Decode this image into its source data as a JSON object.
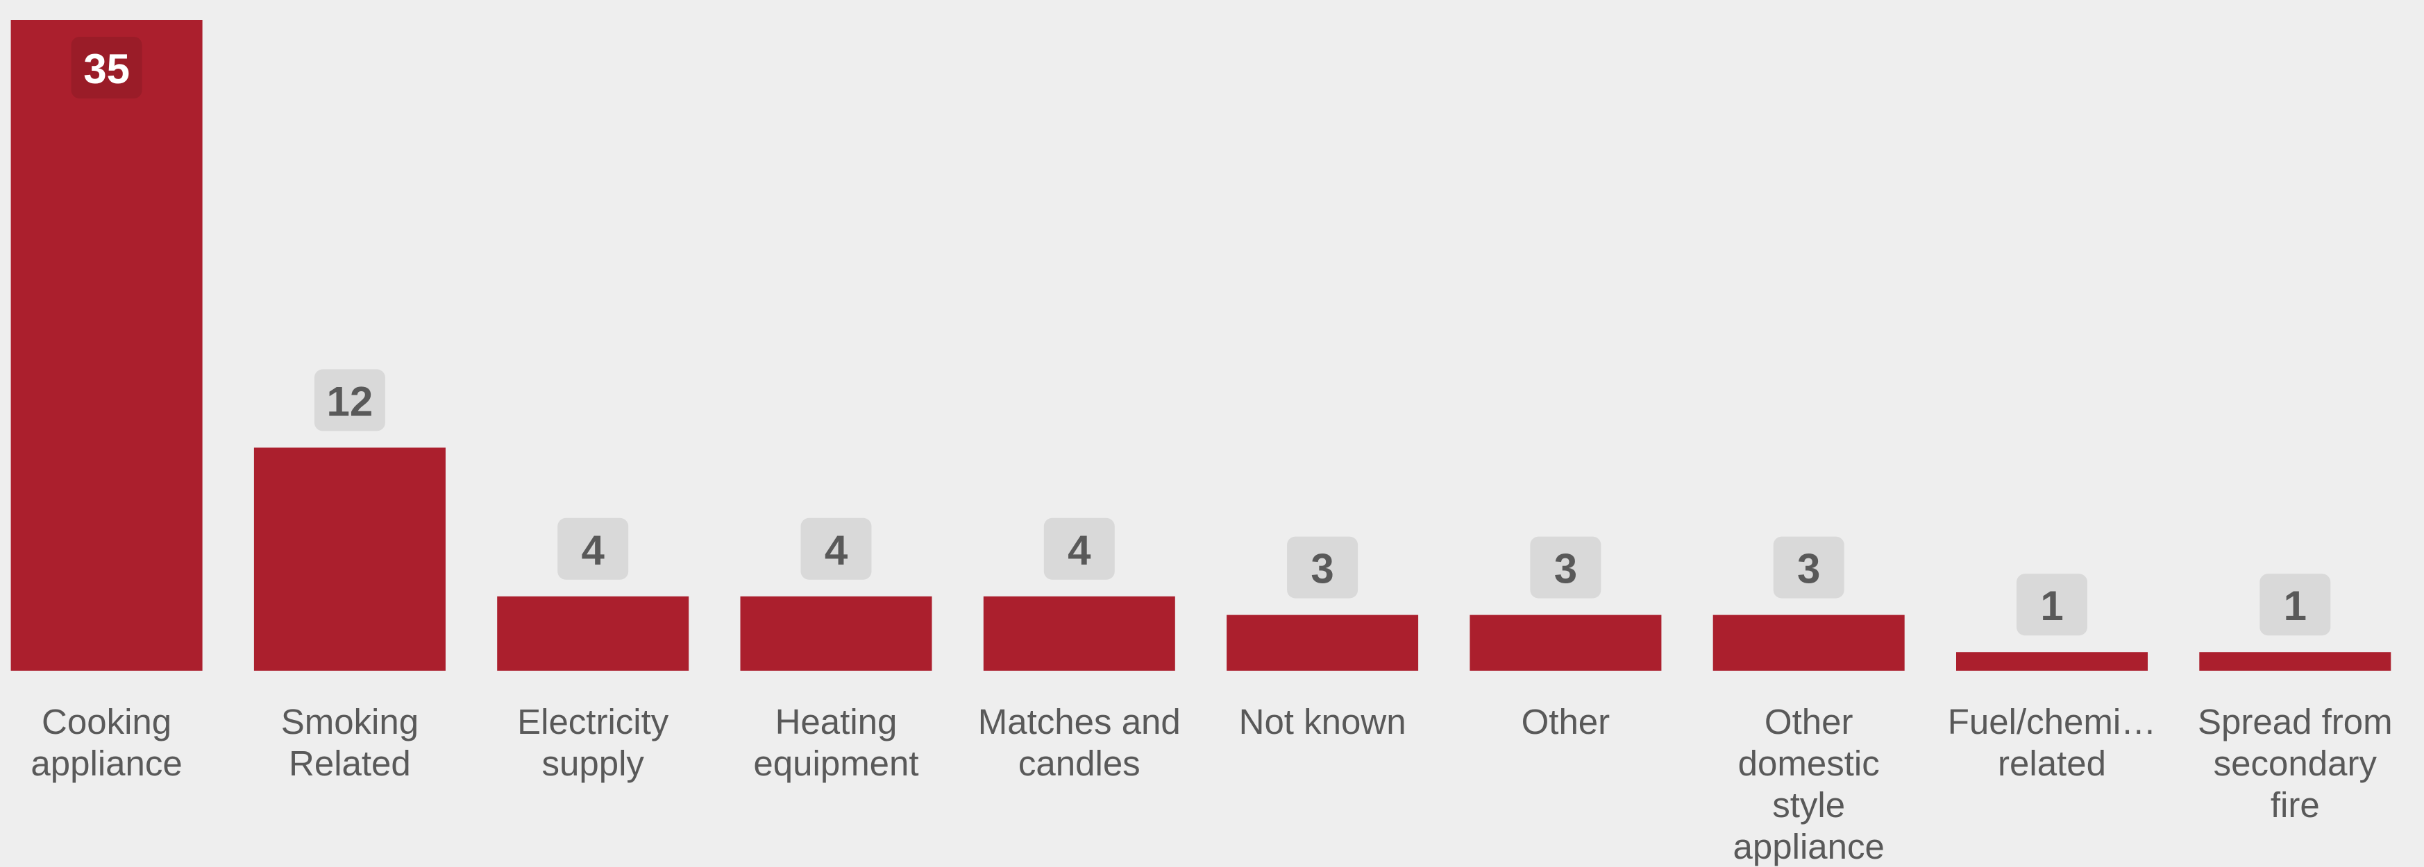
{
  "chart_data": {
    "type": "bar",
    "categories": [
      "Cooking appliance",
      "Smoking Related",
      "Electricity supply",
      "Heating equipment",
      "Matches and candles",
      "Not known",
      "Other",
      "Other domestic style appliance",
      "Fuel/chemi… related",
      "Spread from secondary fire"
    ],
    "values": [
      35,
      12,
      4,
      4,
      4,
      3,
      3,
      3,
      1,
      1
    ],
    "color": "#ab1f2d"
  }
}
